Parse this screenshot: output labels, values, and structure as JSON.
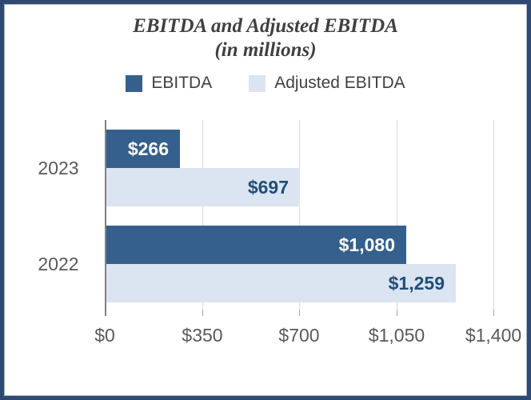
{
  "title": {
    "line1": "EBITDA and Adjusted EBITDA",
    "line2": "(in millions)"
  },
  "colors": {
    "frame_border": "#2E4A73",
    "ebitda_bar": "#35608D",
    "adjusted_bar": "#DBE5F1",
    "ebitda_value_text": "#FFFFFF",
    "adjusted_value_text": "#1F4E79",
    "axis_text": "#595959",
    "title_text": "#404040",
    "gridline": "#D9D9D9",
    "axis_line": "#808080"
  },
  "chart_data": {
    "type": "bar",
    "orientation": "horizontal",
    "title": "EBITDA and Adjusted EBITDA",
    "subtitle": "(in millions)",
    "categories": [
      "2023",
      "2022"
    ],
    "series": [
      {
        "name": "EBITDA",
        "color": "#35608D",
        "label_color": "#FFFFFF",
        "values": [
          266,
          1080
        ],
        "labels": [
          "$266",
          "$1,080"
        ]
      },
      {
        "name": "Adjusted EBITDA",
        "color": "#DBE5F1",
        "label_color": "#1F4E79",
        "values": [
          697,
          1259
        ],
        "labels": [
          "$697",
          "$1,259"
        ]
      }
    ],
    "xlim": [
      0,
      1400
    ],
    "x_ticks": [
      {
        "value": 0,
        "label": "$0"
      },
      {
        "value": 350,
        "label": "$350"
      },
      {
        "value": 700,
        "label": "$700"
      },
      {
        "value": 1050,
        "label": "$1,050"
      },
      {
        "value": 1400,
        "label": "$1,400"
      }
    ],
    "grid": "vertical-gridlines",
    "legend_position": "top"
  }
}
